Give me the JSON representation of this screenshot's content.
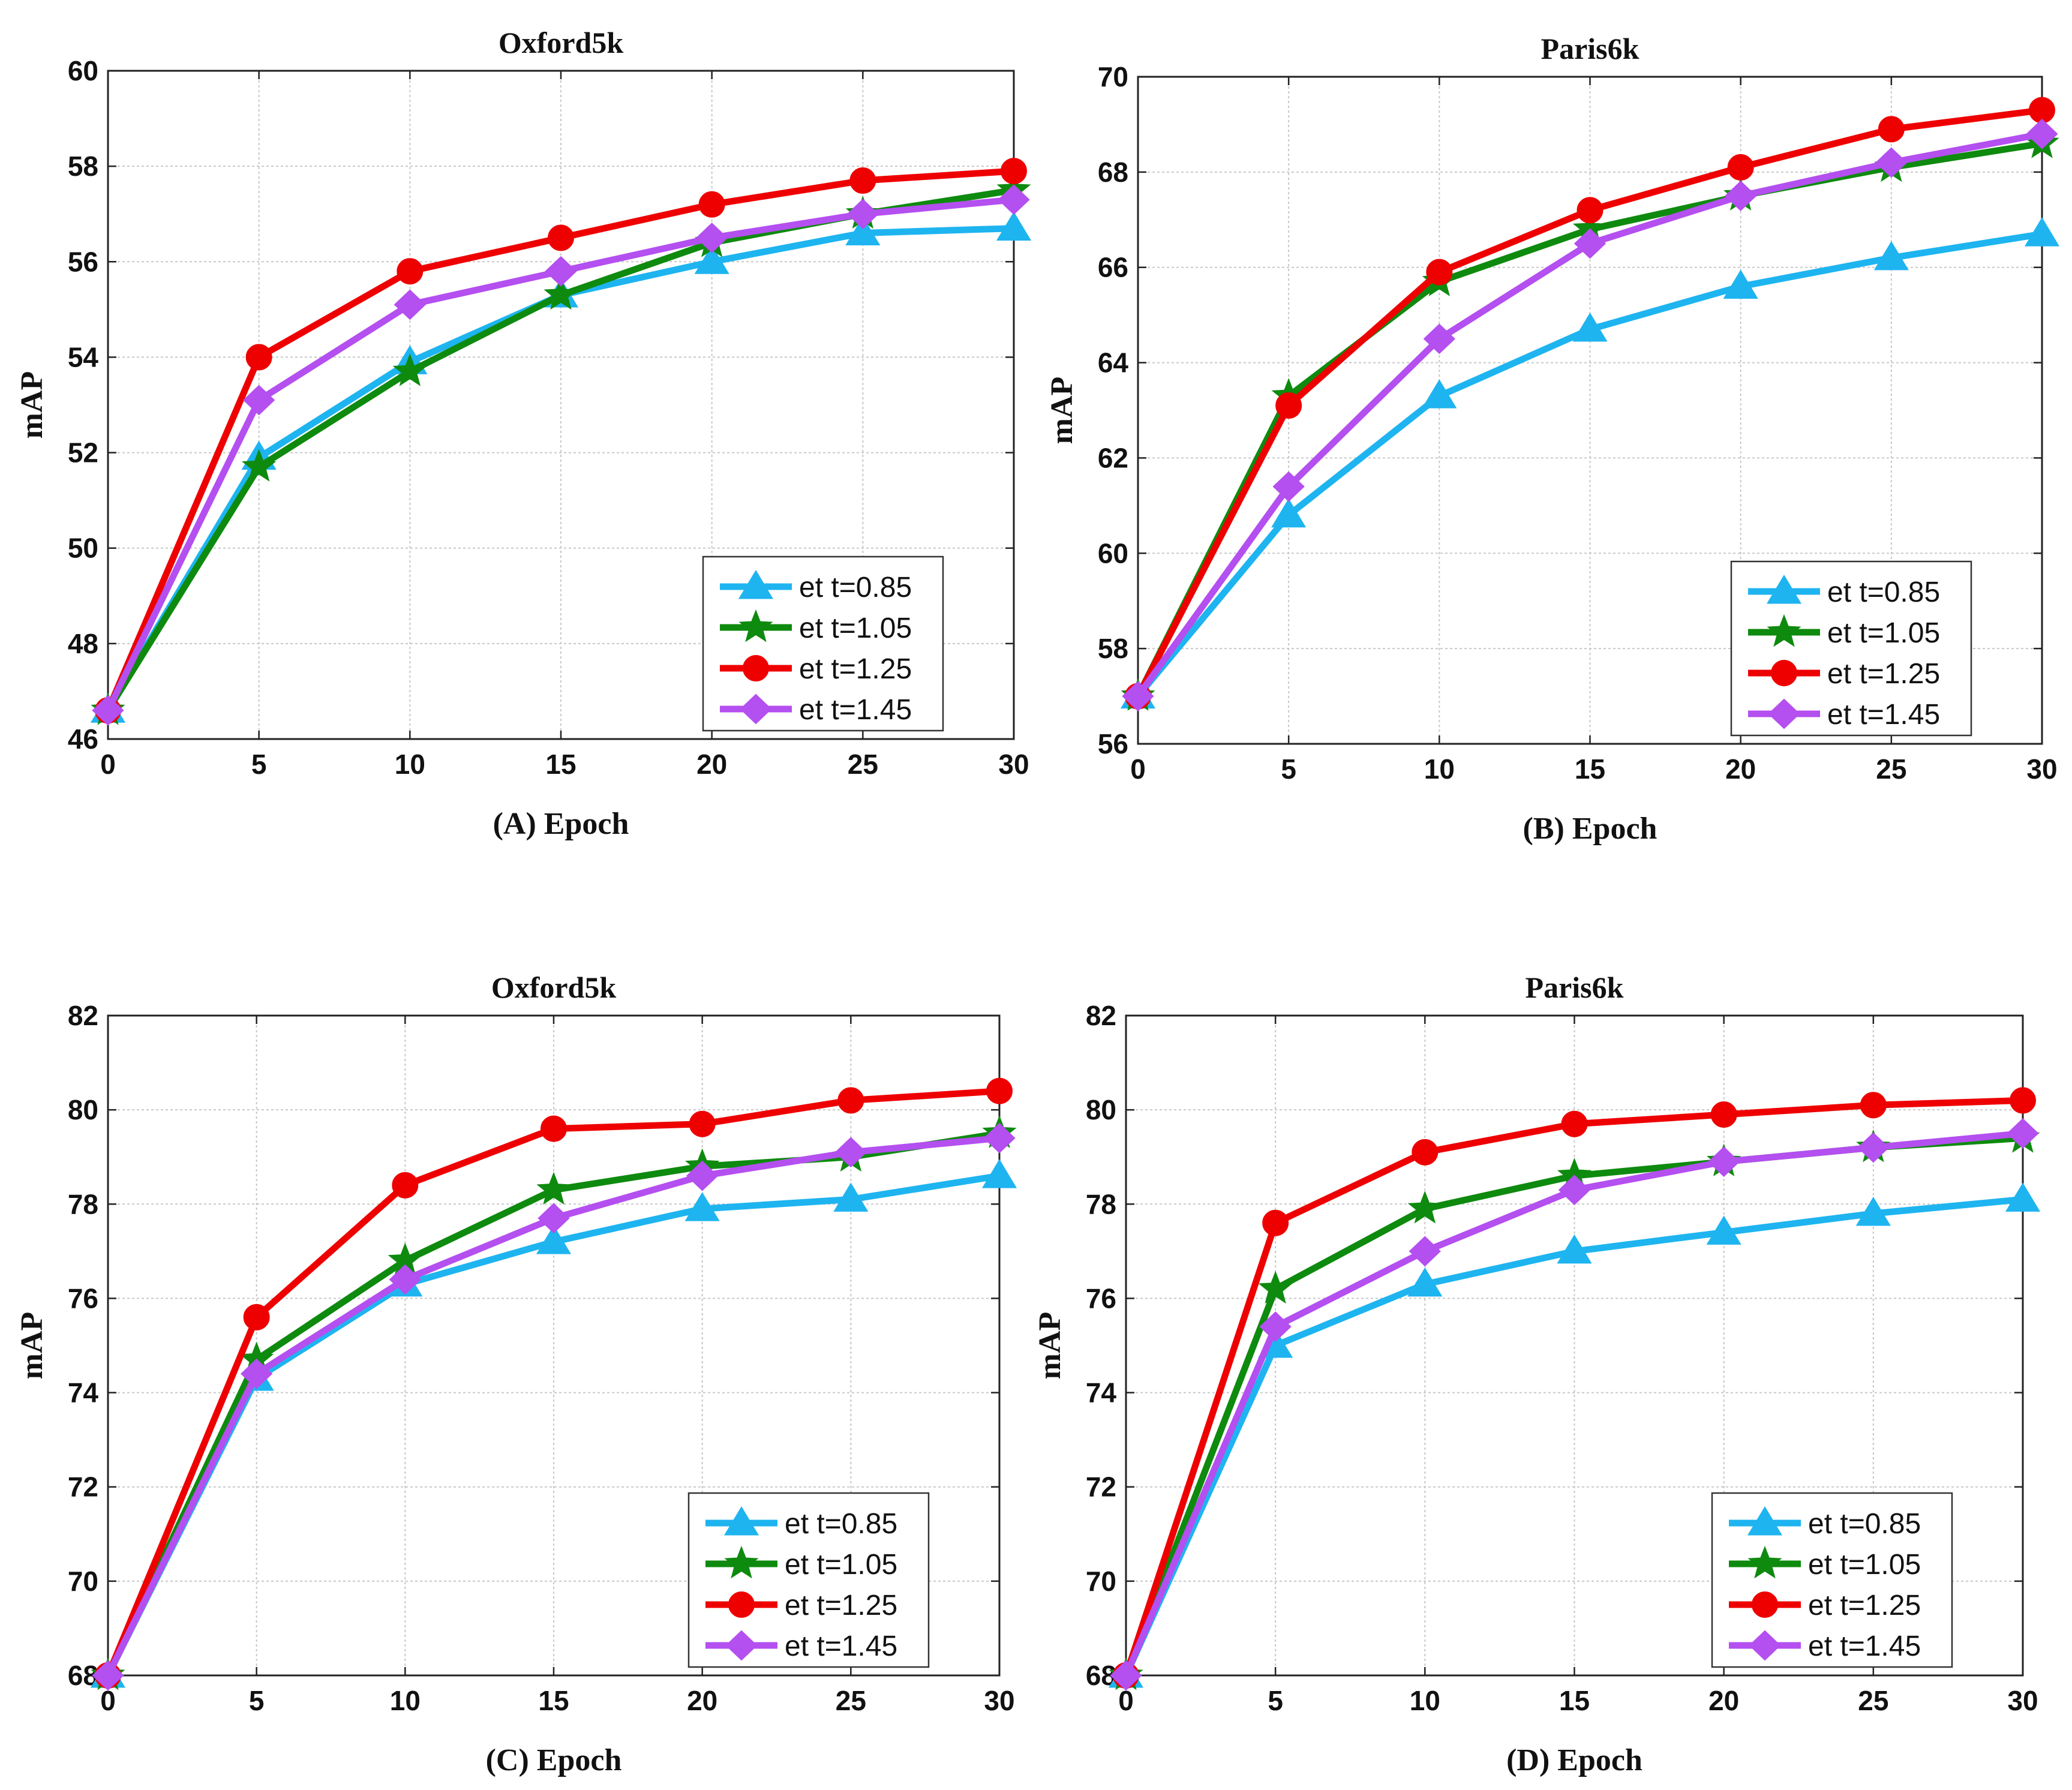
{
  "chart_data": [
    {
      "type": "line",
      "title": "Oxford5k",
      "xlabel": "(A) Epoch",
      "ylabel": "mAP",
      "x": [
        0,
        5,
        10,
        15,
        20,
        25,
        30
      ],
      "xlim": [
        0,
        30
      ],
      "ylim": [
        46,
        60
      ],
      "xticks": [
        0,
        5,
        10,
        15,
        20,
        25,
        30
      ],
      "yticks": [
        46,
        48,
        50,
        52,
        54,
        56,
        58,
        60
      ],
      "grid": true,
      "legend_position": "bottom-right",
      "series": [
        {
          "name": "et t=0.85",
          "color": "#1eb4f0",
          "marker": "triangle",
          "values": [
            46.6,
            51.9,
            53.9,
            55.3,
            56.0,
            56.6,
            56.7
          ]
        },
        {
          "name": "et t=1.05",
          "color": "#0e8a0e",
          "marker": "star",
          "values": [
            46.6,
            51.7,
            53.7,
            55.3,
            56.4,
            57.0,
            57.5
          ]
        },
        {
          "name": "et t=1.25",
          "color": "#ee0000",
          "marker": "circle",
          "values": [
            46.6,
            54.0,
            55.8,
            56.5,
            57.2,
            57.7,
            57.9
          ]
        },
        {
          "name": "et t=1.45",
          "color": "#b44ff0",
          "marker": "diamond",
          "values": [
            46.6,
            53.1,
            55.1,
            55.8,
            56.5,
            57.0,
            57.3
          ]
        }
      ]
    },
    {
      "type": "line",
      "title": "Paris6k",
      "xlabel": "(B) Epoch",
      "ylabel": "mAP",
      "x": [
        0,
        5,
        10,
        15,
        20,
        25,
        30
      ],
      "xlim": [
        0,
        30
      ],
      "ylim": [
        56,
        70
      ],
      "xticks": [
        0,
        5,
        10,
        15,
        20,
        25,
        30
      ],
      "yticks": [
        56,
        58,
        60,
        62,
        64,
        66,
        68,
        70
      ],
      "grid": true,
      "legend_position": "bottom-right",
      "series": [
        {
          "name": "et t=0.85",
          "color": "#1eb4f0",
          "marker": "triangle",
          "values": [
            57.0,
            60.8,
            63.3,
            64.7,
            65.6,
            66.2,
            66.7
          ]
        },
        {
          "name": "et t=1.05",
          "color": "#0e8a0e",
          "marker": "star",
          "values": [
            57.0,
            63.3,
            65.7,
            66.8,
            67.5,
            68.1,
            68.6
          ]
        },
        {
          "name": "et t=1.25",
          "color": "#ee0000",
          "marker": "circle",
          "values": [
            57.0,
            63.1,
            65.9,
            67.2,
            68.1,
            68.9,
            69.3
          ]
        },
        {
          "name": "et t=1.45",
          "color": "#b44ff0",
          "marker": "diamond",
          "values": [
            57.0,
            61.4,
            64.5,
            66.5,
            67.5,
            68.2,
            68.8
          ]
        }
      ]
    },
    {
      "type": "line",
      "title": "Oxford5k",
      "xlabel": "(C) Epoch",
      "ylabel": "mAP",
      "x": [
        0,
        5,
        10,
        15,
        20,
        25,
        30
      ],
      "xlim": [
        0,
        30
      ],
      "ylim": [
        68,
        82
      ],
      "xticks": [
        0,
        5,
        10,
        15,
        20,
        25,
        30
      ],
      "yticks": [
        68,
        70,
        72,
        74,
        76,
        78,
        80,
        82
      ],
      "grid": true,
      "legend_position": "bottom-right",
      "series": [
        {
          "name": "et t=0.85",
          "color": "#1eb4f0",
          "marker": "triangle",
          "values": [
            68.0,
            74.3,
            76.3,
            77.2,
            77.9,
            78.1,
            78.6
          ]
        },
        {
          "name": "et t=1.05",
          "color": "#0e8a0e",
          "marker": "star",
          "values": [
            68.0,
            74.7,
            76.8,
            78.3,
            78.8,
            79.0,
            79.5
          ]
        },
        {
          "name": "et t=1.25",
          "color": "#ee0000",
          "marker": "circle",
          "values": [
            68.0,
            75.6,
            78.4,
            79.6,
            79.7,
            80.2,
            80.4
          ]
        },
        {
          "name": "et t=1.45",
          "color": "#b44ff0",
          "marker": "diamond",
          "values": [
            68.0,
            74.4,
            76.4,
            77.7,
            78.6,
            79.1,
            79.4
          ]
        }
      ]
    },
    {
      "type": "line",
      "title": "Paris6k",
      "xlabel": "(D) Epoch",
      "ylabel": "mAP",
      "x": [
        0,
        5,
        10,
        15,
        20,
        25,
        30
      ],
      "xlim": [
        0,
        30
      ],
      "ylim": [
        68,
        82
      ],
      "xticks": [
        0,
        5,
        10,
        15,
        20,
        25,
        30
      ],
      "yticks": [
        68,
        70,
        72,
        74,
        76,
        78,
        80,
        82
      ],
      "grid": true,
      "legend_position": "bottom-right",
      "series": [
        {
          "name": "et t=0.85",
          "color": "#1eb4f0",
          "marker": "triangle",
          "values": [
            68.0,
            75.0,
            76.3,
            77.0,
            77.4,
            77.8,
            78.1
          ]
        },
        {
          "name": "et t=1.05",
          "color": "#0e8a0e",
          "marker": "star",
          "values": [
            68.0,
            76.2,
            77.9,
            78.6,
            78.9,
            79.2,
            79.4
          ]
        },
        {
          "name": "et t=1.25",
          "color": "#ee0000",
          "marker": "circle",
          "values": [
            68.0,
            77.6,
            79.1,
            79.7,
            79.9,
            80.1,
            80.2
          ]
        },
        {
          "name": "et t=1.45",
          "color": "#b44ff0",
          "marker": "diamond",
          "values": [
            68.0,
            75.4,
            77.0,
            78.3,
            78.9,
            79.2,
            79.5
          ]
        }
      ]
    }
  ]
}
